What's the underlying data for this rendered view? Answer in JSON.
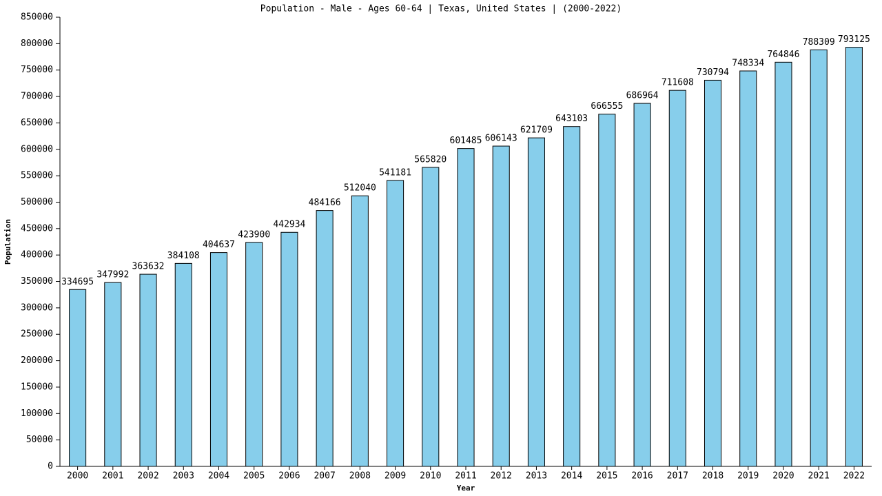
{
  "chart_data": {
    "type": "bar",
    "title": "Population - Male - Ages 60-64 | Texas, United States |  (2000-2022)",
    "x_label": "Year",
    "y_label": "Population",
    "categories": [
      "2000",
      "2001",
      "2002",
      "2003",
      "2004",
      "2005",
      "2006",
      "2007",
      "2008",
      "2009",
      "2010",
      "2011",
      "2012",
      "2013",
      "2014",
      "2015",
      "2016",
      "2017",
      "2018",
      "2019",
      "2020",
      "2021",
      "2022"
    ],
    "values": [
      334695,
      347992,
      363632,
      384108,
      404637,
      423900,
      442934,
      484166,
      512040,
      541181,
      565820,
      601485,
      606143,
      621709,
      643103,
      666555,
      686964,
      711608,
      730794,
      748334,
      764846,
      788309,
      793125
    ],
    "color": "#87ceeb",
    "ylim": [
      0,
      850000
    ],
    "yticks": [
      0,
      50000,
      100000,
      150000,
      200000,
      250000,
      300000,
      350000,
      400000,
      450000,
      500000,
      550000,
      600000,
      650000,
      700000,
      750000,
      800000,
      850000
    ],
    "grid": false
  }
}
